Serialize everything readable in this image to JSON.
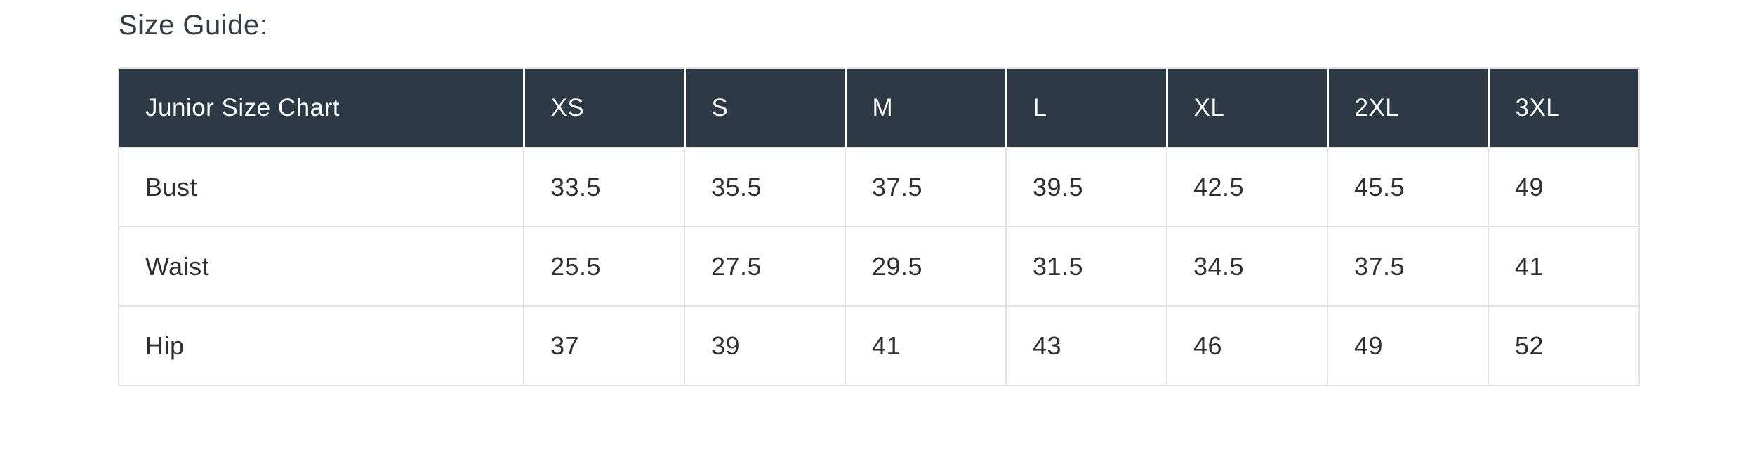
{
  "title": "Size Guide:",
  "table": {
    "name": "Junior Size Chart",
    "columns": [
      "Junior Size Chart",
      "XS",
      "S",
      "M",
      "L",
      "XL",
      "2XL",
      "3XL"
    ],
    "rows": [
      {
        "label": "Bust",
        "values": [
          "33.5",
          "35.5",
          "37.5",
          "39.5",
          "42.5",
          "45.5",
          "49"
        ]
      },
      {
        "label": "Waist",
        "values": [
          "25.5",
          "27.5",
          "29.5",
          "31.5",
          "34.5",
          "37.5",
          "41"
        ]
      },
      {
        "label": "Hip",
        "values": [
          "37",
          "39",
          "41",
          "43",
          "46",
          "49",
          "52"
        ]
      }
    ]
  },
  "theme": {
    "header_bg": "#2e3946",
    "header_text": "#fafbfc",
    "body_text": "#2f2f2f",
    "title_text": "#363c45",
    "grid_border": "#e2e2e2",
    "header_divider": "#ffffff",
    "page_bg": "#ffffff"
  }
}
